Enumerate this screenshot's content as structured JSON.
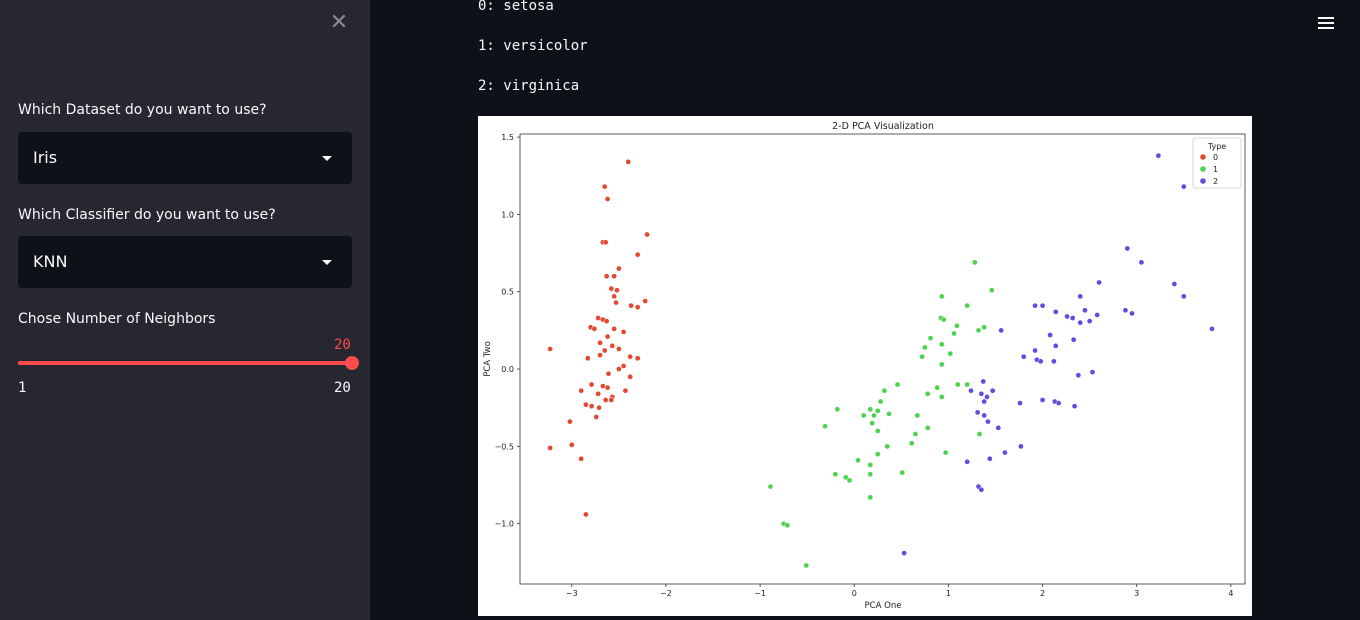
{
  "sidebar": {
    "close_icon": "close-icon",
    "dataset_label": "Which Dataset do you want to use?",
    "dataset_value": "Iris",
    "classifier_label": "Which Classifier do you want to use?",
    "classifier_value": "KNN",
    "slider_label": "Chose Number of Neighbors",
    "slider_value": "20",
    "slider_min": "1",
    "slider_max": "20",
    "slider_fraction": 1.0,
    "accent_color": "#ff4b4b"
  },
  "main": {
    "class_lines": [
      "0: setosa",
      "1: versicolor",
      "2: virginica"
    ],
    "menu_icon": "hamburger-icon"
  },
  "chart_data": {
    "type": "scatter",
    "title": "2-D PCA Visualization",
    "xlabel": "PCA One",
    "ylabel": "PCA Two",
    "xlim": [
      -3.55,
      4.15
    ],
    "ylim": [
      -1.39,
      1.52
    ],
    "x_ticks": [
      -3,
      -2,
      -1,
      0,
      1,
      2,
      3,
      4
    ],
    "y_ticks": [
      -1.0,
      -0.5,
      0.0,
      0.5,
      1.0,
      1.5
    ],
    "x_tick_labels": [
      "−3",
      "−2",
      "−1",
      "0",
      "1",
      "2",
      "3",
      "4"
    ],
    "y_tick_labels": [
      "−1.0",
      "−0.5",
      "0.0",
      "0.5",
      "1.0",
      "1.5"
    ],
    "legend": {
      "title": "Type",
      "placement": "top-right"
    },
    "grid": false,
    "series": [
      {
        "name": "0",
        "color": "#e24a33",
        "points": [
          [
            -2.4,
            1.34
          ],
          [
            -2.65,
            1.18
          ],
          [
            -2.62,
            1.1
          ],
          [
            -2.2,
            0.87
          ],
          [
            -2.67,
            0.82
          ],
          [
            -2.64,
            0.82
          ],
          [
            -2.3,
            0.74
          ],
          [
            -2.5,
            0.65
          ],
          [
            -2.63,
            0.6
          ],
          [
            -2.55,
            0.6
          ],
          [
            -2.58,
            0.52
          ],
          [
            -2.52,
            0.51
          ],
          [
            -2.55,
            0.47
          ],
          [
            -2.22,
            0.44
          ],
          [
            -2.53,
            0.43
          ],
          [
            -2.37,
            0.41
          ],
          [
            -2.3,
            0.4
          ],
          [
            -2.72,
            0.33
          ],
          [
            -2.67,
            0.32
          ],
          [
            -2.63,
            0.31
          ],
          [
            -2.8,
            0.27
          ],
          [
            -2.76,
            0.26
          ],
          [
            -2.55,
            0.26
          ],
          [
            -2.45,
            0.24
          ],
          [
            -2.62,
            0.21
          ],
          [
            -2.7,
            0.17
          ],
          [
            -2.57,
            0.15
          ],
          [
            -2.5,
            0.13
          ],
          [
            -2.65,
            0.12
          ],
          [
            -2.7,
            0.09
          ],
          [
            -2.38,
            0.08
          ],
          [
            -2.83,
            0.07
          ],
          [
            -2.3,
            0.07
          ],
          [
            -2.45,
            0.02
          ],
          [
            -2.5,
            0
          ],
          [
            -2.61,
            -0.03
          ],
          [
            -2.38,
            -0.05
          ],
          [
            -2.79,
            -0.1
          ],
          [
            -2.67,
            -0.11
          ],
          [
            -2.62,
            -0.12
          ],
          [
            -2.43,
            -0.14
          ],
          [
            -2.9,
            -0.14
          ],
          [
            -2.72,
            -0.16
          ],
          [
            -2.57,
            -0.18
          ],
          [
            -2.64,
            -0.2
          ],
          [
            -2.58,
            -0.2
          ],
          [
            -2.85,
            -0.23
          ],
          [
            -2.79,
            -0.24
          ],
          [
            -2.71,
            -0.25
          ],
          [
            -2.74,
            -0.31
          ],
          [
            -3.02,
            -0.34
          ],
          [
            -3.23,
            0.13
          ],
          [
            -3.0,
            -0.49
          ],
          [
            -3.23,
            -0.51
          ],
          [
            -2.9,
            -0.58
          ],
          [
            -2.85,
            -0.94
          ]
        ]
      },
      {
        "name": "1",
        "color": "#4ed34e",
        "points": [
          [
            1.28,
            0.69
          ],
          [
            1.46,
            0.51
          ],
          [
            0.93,
            0.47
          ],
          [
            1.2,
            0.41
          ],
          [
            0.92,
            0.33
          ],
          [
            0.95,
            0.32
          ],
          [
            1.09,
            0.28
          ],
          [
            1.38,
            0.27
          ],
          [
            1.32,
            0.25
          ],
          [
            1.06,
            0.23
          ],
          [
            0.81,
            0.2
          ],
          [
            0.93,
            0.16
          ],
          [
            0.75,
            0.14
          ],
          [
            1.02,
            0.1
          ],
          [
            0.72,
            0.08
          ],
          [
            0.93,
            0.03
          ],
          [
            0.46,
            -0.1
          ],
          [
            0.88,
            -0.12
          ],
          [
            1.1,
            -0.1
          ],
          [
            1.2,
            -0.1
          ],
          [
            0.78,
            -0.16
          ],
          [
            0.93,
            -0.18
          ],
          [
            0.32,
            -0.14
          ],
          [
            0.28,
            -0.21
          ],
          [
            0.25,
            -0.27
          ],
          [
            0.17,
            -0.26
          ],
          [
            -0.18,
            -0.26
          ],
          [
            0.37,
            -0.29
          ],
          [
            0.1,
            -0.3
          ],
          [
            0.21,
            -0.3
          ],
          [
            0.67,
            -0.3
          ],
          [
            0.19,
            -0.35
          ],
          [
            -0.31,
            -0.37
          ],
          [
            0.78,
            -0.38
          ],
          [
            0.25,
            -0.4
          ],
          [
            0.65,
            -0.42
          ],
          [
            1.33,
            -0.42
          ],
          [
            0.61,
            -0.48
          ],
          [
            0.35,
            -0.5
          ],
          [
            0.97,
            -0.54
          ],
          [
            0.25,
            -0.55
          ],
          [
            0.04,
            -0.59
          ],
          [
            0.17,
            -0.62
          ],
          [
            0.51,
            -0.67
          ],
          [
            -0.2,
            -0.68
          ],
          [
            0.17,
            -0.68
          ],
          [
            -0.09,
            -0.7
          ],
          [
            -0.05,
            -0.72
          ],
          [
            -0.89,
            -0.76
          ],
          [
            0.17,
            -0.83
          ],
          [
            -0.75,
            -1.0
          ],
          [
            -0.71,
            -1.01
          ],
          [
            -0.51,
            -1.27
          ]
        ]
      },
      {
        "name": "2",
        "color": "#5a4fe0",
        "points": [
          [
            3.23,
            1.38
          ],
          [
            3.5,
            1.18
          ],
          [
            2.9,
            0.78
          ],
          [
            3.05,
            0.69
          ],
          [
            2.6,
            0.56
          ],
          [
            3.4,
            0.55
          ],
          [
            2.4,
            0.47
          ],
          [
            3.5,
            0.47
          ],
          [
            2.0,
            0.41
          ],
          [
            2.45,
            0.38
          ],
          [
            2.26,
            0.34
          ],
          [
            2.88,
            0.38
          ],
          [
            1.92,
            0.41
          ],
          [
            2.14,
            0.37
          ],
          [
            2.58,
            0.35
          ],
          [
            2.95,
            0.36
          ],
          [
            2.32,
            0.33
          ],
          [
            2.5,
            0.31
          ],
          [
            2.4,
            0.3
          ],
          [
            3.8,
            0.26
          ],
          [
            1.56,
            0.25
          ],
          [
            2.08,
            0.22
          ],
          [
            2.33,
            0.19
          ],
          [
            2.14,
            0.15
          ],
          [
            1.92,
            0.12
          ],
          [
            1.8,
            0.08
          ],
          [
            1.94,
            0.06
          ],
          [
            1.98,
            0.05
          ],
          [
            2.12,
            0.05
          ],
          [
            1.37,
            -0.08
          ],
          [
            1.47,
            -0.14
          ],
          [
            2.53,
            -0.02
          ],
          [
            2.38,
            -0.04
          ],
          [
            1.24,
            -0.14
          ],
          [
            1.35,
            -0.16
          ],
          [
            1.76,
            -0.22
          ],
          [
            1.38,
            -0.21
          ],
          [
            1.41,
            -0.18
          ],
          [
            2.0,
            -0.2
          ],
          [
            2.13,
            -0.21
          ],
          [
            2.17,
            -0.22
          ],
          [
            2.34,
            -0.24
          ],
          [
            1.31,
            -0.28
          ],
          [
            1.38,
            -0.3
          ],
          [
            1.42,
            -0.34
          ],
          [
            1.53,
            -0.38
          ],
          [
            1.77,
            -0.5
          ],
          [
            1.6,
            -0.54
          ],
          [
            1.44,
            -0.58
          ],
          [
            1.2,
            -0.6
          ],
          [
            1.32,
            -0.76
          ],
          [
            1.35,
            -0.78
          ],
          [
            0.53,
            -1.19
          ]
        ]
      }
    ]
  }
}
